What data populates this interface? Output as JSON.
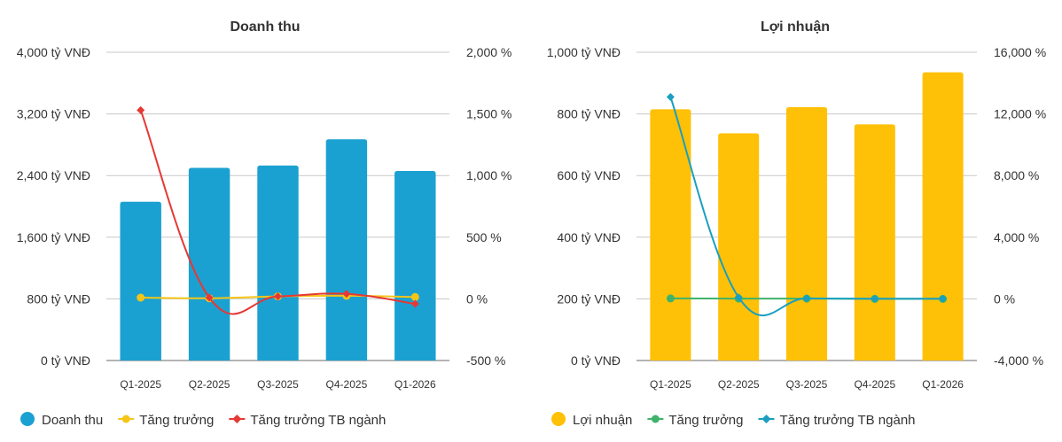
{
  "chart_data": [
    {
      "type": "bar",
      "title": "Doanh thu",
      "categories": [
        "Q1-2025",
        "Q2-2025",
        "Q3-2025",
        "Q4-2025",
        "Q1-2026"
      ],
      "y_left": {
        "ticks": [
          "0 tỷ VNĐ",
          "800 tỷ VNĐ",
          "1,600 tỷ VNĐ",
          "2,400 tỷ VNĐ",
          "3,200 tỷ VNĐ",
          "4,000 tỷ VNĐ"
        ],
        "range": [
          0,
          4000
        ]
      },
      "y_right": {
        "ticks": [
          "-500 %",
          "0 %",
          "500 %",
          "1,000 %",
          "1,500 %",
          "2,000 %"
        ],
        "range": [
          -500,
          2000
        ]
      },
      "series": [
        {
          "name": "Doanh thu",
          "type": "bar",
          "axis": "left",
          "color": "#1ba1d1",
          "values": [
            2060,
            2500,
            2530,
            2870,
            2460
          ]
        },
        {
          "name": "Tăng trưởng",
          "type": "line",
          "axis": "right",
          "color": "#f5c518",
          "values": [
            10,
            5,
            20,
            25,
            15
          ]
        },
        {
          "name": "Tăng trưởng TB ngành",
          "type": "line",
          "axis": "right",
          "color": "#e53935",
          "values": [
            1530,
            10,
            20,
            40,
            -40
          ]
        }
      ],
      "grid": true,
      "legend": "bottom-left"
    },
    {
      "type": "bar",
      "title": "Lợi nhuận",
      "categories": [
        "Q1-2025",
        "Q2-2025",
        "Q3-2025",
        "Q4-2025",
        "Q1-2026"
      ],
      "y_left": {
        "ticks": [
          "0 tỷ VNĐ",
          "200 tỷ VNĐ",
          "400 tỷ VNĐ",
          "600 tỷ VNĐ",
          "800 tỷ VNĐ",
          "1,000 tỷ VNĐ"
        ],
        "range": [
          0,
          1000
        ]
      },
      "y_right": {
        "ticks": [
          "-4,000 %",
          "0 %",
          "4,000 %",
          "8,000 %",
          "12,000 %",
          "16,000 %"
        ],
        "range": [
          -4000,
          16000
        ]
      },
      "series": [
        {
          "name": "Lợi nhuận",
          "type": "bar",
          "axis": "left",
          "color": "#ffc107",
          "values": [
            815,
            737,
            822,
            766,
            935
          ]
        },
        {
          "name": "Tăng trưởng",
          "type": "line",
          "axis": "right",
          "color": "#3fb36a",
          "values": [
            30,
            20,
            20,
            0,
            0
          ]
        },
        {
          "name": "Tăng trưởng TB ngành",
          "type": "line",
          "axis": "right",
          "color": "#1a9fc0",
          "values": [
            13100,
            100,
            30,
            10,
            10
          ]
        }
      ],
      "grid": true,
      "legend": "bottom-left"
    }
  ]
}
